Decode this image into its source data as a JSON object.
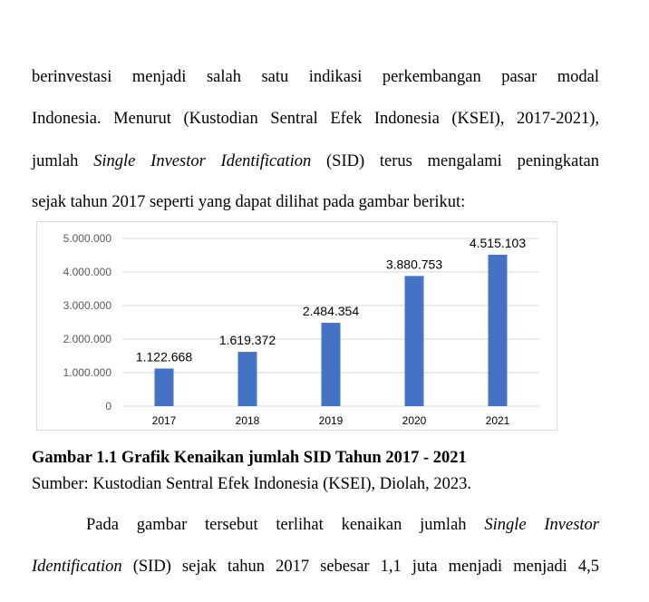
{
  "paragraph1": {
    "line1": "berinvestasi menjadi salah satu indikasi perkembangan pasar modal",
    "line2": "Indonesia. Menurut (Kustodian Sentral Efek Indonesia (KSEI), 2017-2021),",
    "line3_a": "jumlah ",
    "line3_b": "Single Investor Identification",
    "line3_c": " (SID) terus mengalami peningkatan",
    "line4": "sejak tahun 2017 seperti yang dapat dilihat pada gambar berikut:"
  },
  "chart_data": {
    "type": "bar",
    "categories": [
      "2017",
      "2018",
      "2019",
      "2020",
      "2021"
    ],
    "values": [
      1122668,
      1619372,
      2484354,
      3880753,
      4515103
    ],
    "value_labels": [
      "1.122.668",
      "1.619.372",
      "2.484.354",
      "3.880.753",
      "4.515.103"
    ],
    "y_ticks": [
      "0",
      "1.000.000",
      "2.000.000",
      "3.000.000",
      "4.000.000",
      "5.000.000"
    ],
    "ylim": [
      0,
      5000000
    ],
    "bar_color": "#4472C4",
    "grid": true
  },
  "caption": "Gambar 1.1 Grafik Kenaikan jumlah SID Tahun 2017 - 2021",
  "source": "Sumber: Kustodian Sentral Efek Indonesia (KSEI), Diolah, 2023.",
  "paragraph2": {
    "line1_a": "Pada gambar tersebut terlihat kenaikan jumlah ",
    "line1_b": "Single Investor",
    "line2_a": "Identification",
    "line2_b": " (SID) sejak tahun 2017 sebesar 1,1 juta menjadi menjadi 4,5"
  }
}
